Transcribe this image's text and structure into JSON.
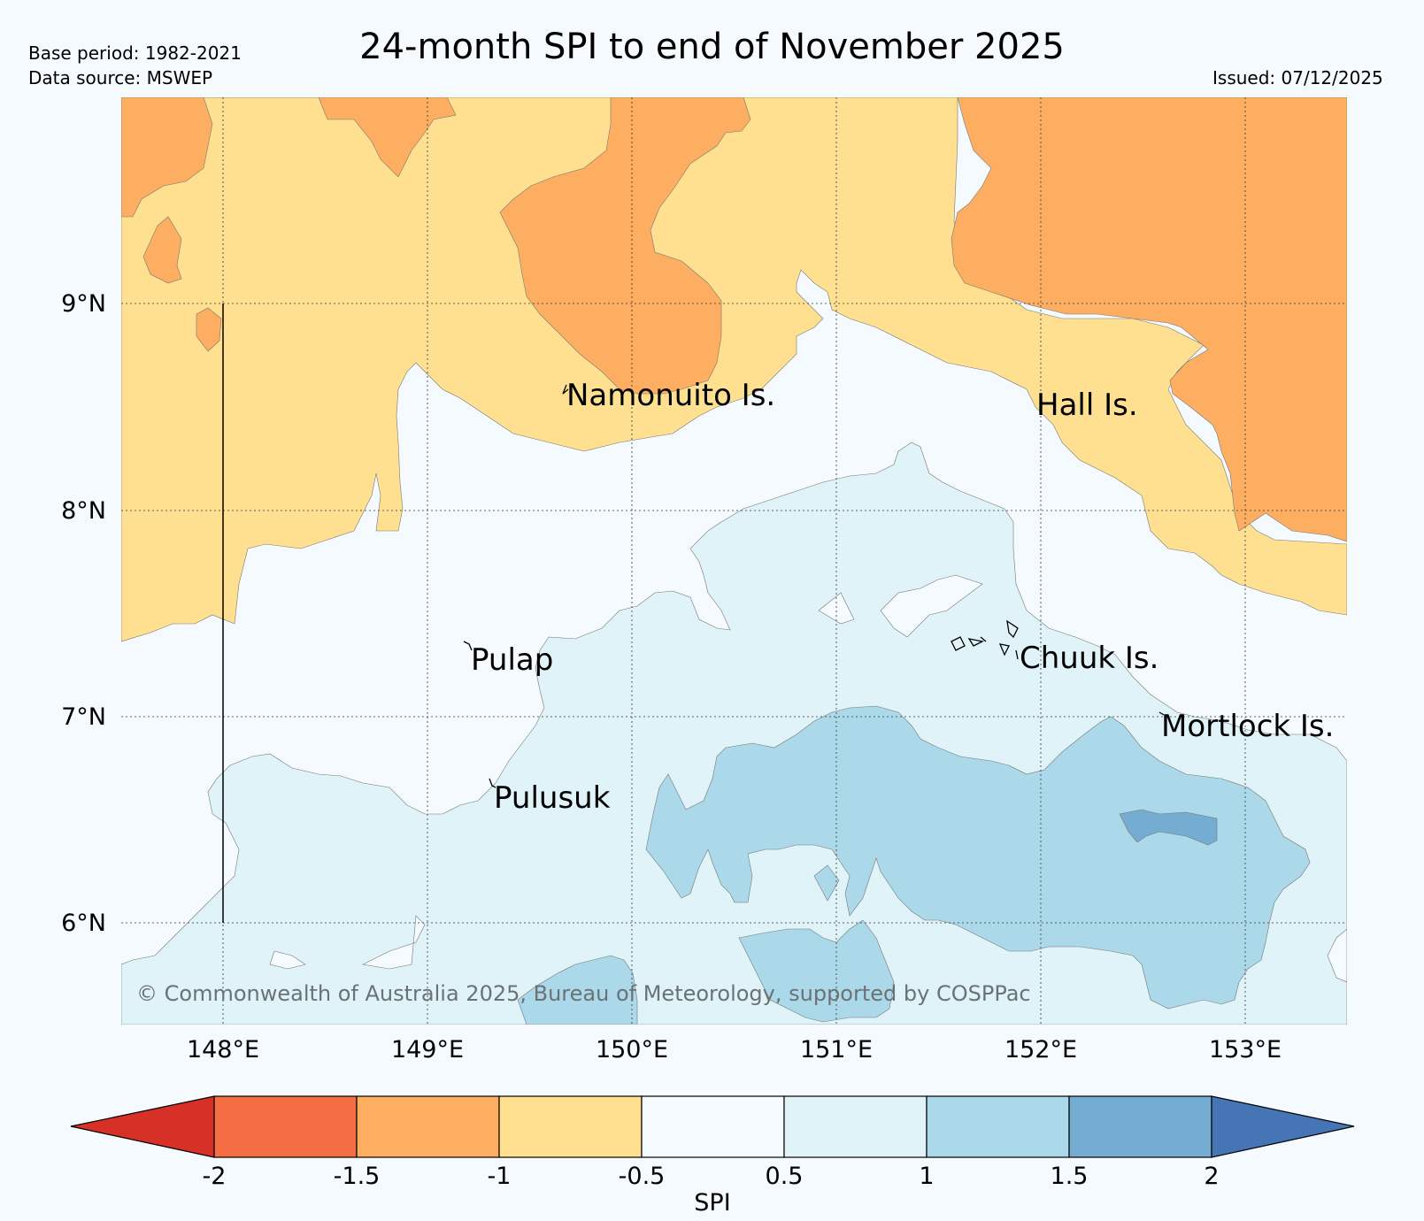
{
  "header": {
    "title": "24-month SPI to end of November 2025",
    "base_period": "Base period: 1982-2021",
    "data_source": "Data source: MSWEP",
    "issued": "Issued: 07/12/2025"
  },
  "map": {
    "lat_labels": [
      "9°N",
      "8°N",
      "7°N",
      "6°N"
    ],
    "lon_labels": [
      "148°E",
      "149°E",
      "150°E",
      "151°E",
      "152°E",
      "153°E"
    ],
    "places": [
      "Namonuito Is.",
      "Hall Is.",
      "Pulap",
      "Chuuk Is.",
      "Mortlock Is.",
      "Pulusuk"
    ],
    "copyright": "© Commonwealth of Australia 2025, Bureau of Meteorology, supported by COSPPac"
  },
  "colorbar": {
    "label": "SPI",
    "ticks": [
      "-2",
      "-1.5",
      "-1",
      "-0.5",
      "0.5",
      "1",
      "1.5",
      "2"
    ],
    "colors": {
      "below_min": "#d73027",
      "c_m2_m15": "#f46d43",
      "c_m15_m1": "#fdae61",
      "c_m1_m05": "#fee090",
      "c_m05_05": "#f4fafd",
      "c_05_1": "#e0f3f8",
      "c_1_15": "#abd9e9",
      "c_15_2": "#74add1",
      "above_max": "#4575b4"
    }
  }
}
